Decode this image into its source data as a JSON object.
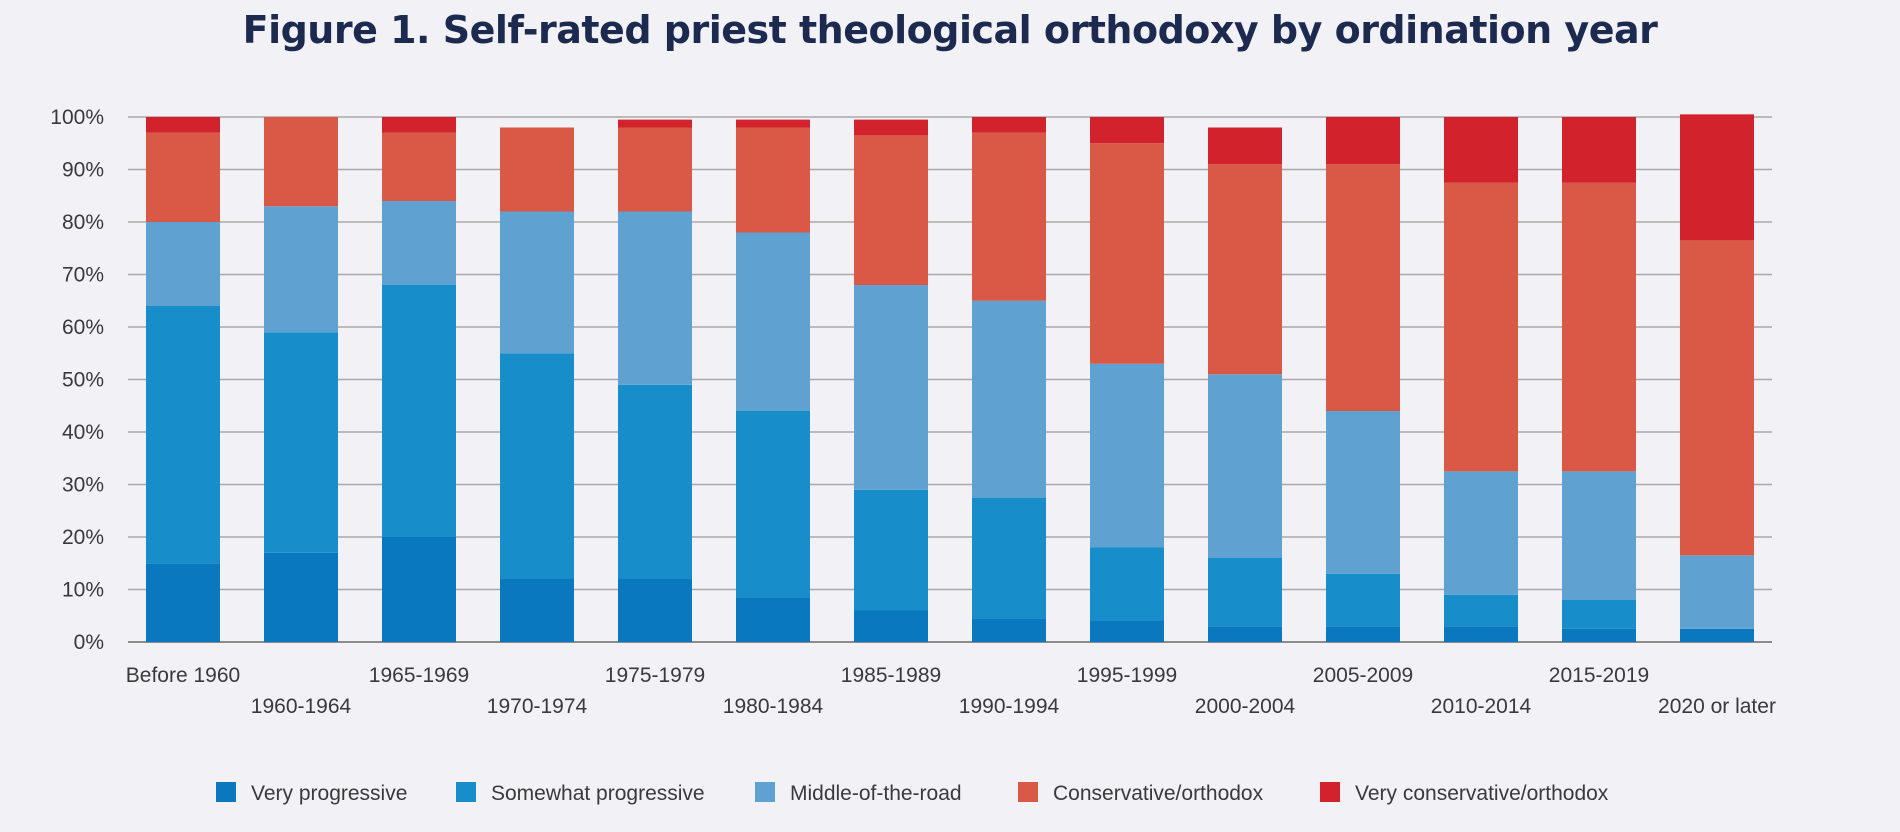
{
  "chart_data": {
    "type": "bar",
    "stacked": true,
    "title": "Figure 1. Self-rated priest theological orthodoxy by ordination year",
    "xlabel": "",
    "ylabel": "",
    "ylim": [
      0,
      100
    ],
    "y_ticks": [
      "0%",
      "10%",
      "20%",
      "30%",
      "40%",
      "50%",
      "60%",
      "70%",
      "80%",
      "90%",
      "100%"
    ],
    "grid": true,
    "legend_position": "bottom",
    "categories": [
      "Before 1960",
      "1960-1964",
      "1965-1969",
      "1970-1974",
      "1975-1979",
      "1980-1984",
      "1985-1989",
      "1990-1994",
      "1995-1999",
      "2000-2004",
      "2005-2009",
      "2010-2014",
      "2015-2019",
      "2020 or later"
    ],
    "series": [
      {
        "name": "Very progressive",
        "color": "#0a78be",
        "values": [
          15,
          17,
          20,
          12,
          12,
          8.5,
          6,
          4.5,
          4,
          3,
          3,
          3,
          2.5,
          2.5
        ]
      },
      {
        "name": "Somewhat progressive",
        "color": "#178dc9",
        "values": [
          49,
          42,
          48,
          43,
          37,
          35.5,
          23,
          23,
          14,
          13,
          10,
          6,
          5.5,
          0
        ]
      },
      {
        "name": "Middle-of-the-road",
        "color": "#5fa2d2",
        "values": [
          16,
          24,
          16,
          27,
          33,
          34,
          39,
          37.5,
          35,
          35,
          31,
          23.5,
          24.5,
          14
        ]
      },
      {
        "name": "Conservative/orthodox",
        "color": "#da5846",
        "values": [
          17,
          17,
          13,
          16,
          16,
          20,
          28.5,
          32,
          42,
          40,
          47,
          55,
          55,
          60
        ]
      },
      {
        "name": "Very conservative/orthodox",
        "color": "#d2232d",
        "values": [
          3,
          0,
          3,
          0,
          1.5,
          1.5,
          3,
          3,
          5,
          7,
          9,
          12.5,
          12.5,
          24
        ]
      }
    ]
  }
}
